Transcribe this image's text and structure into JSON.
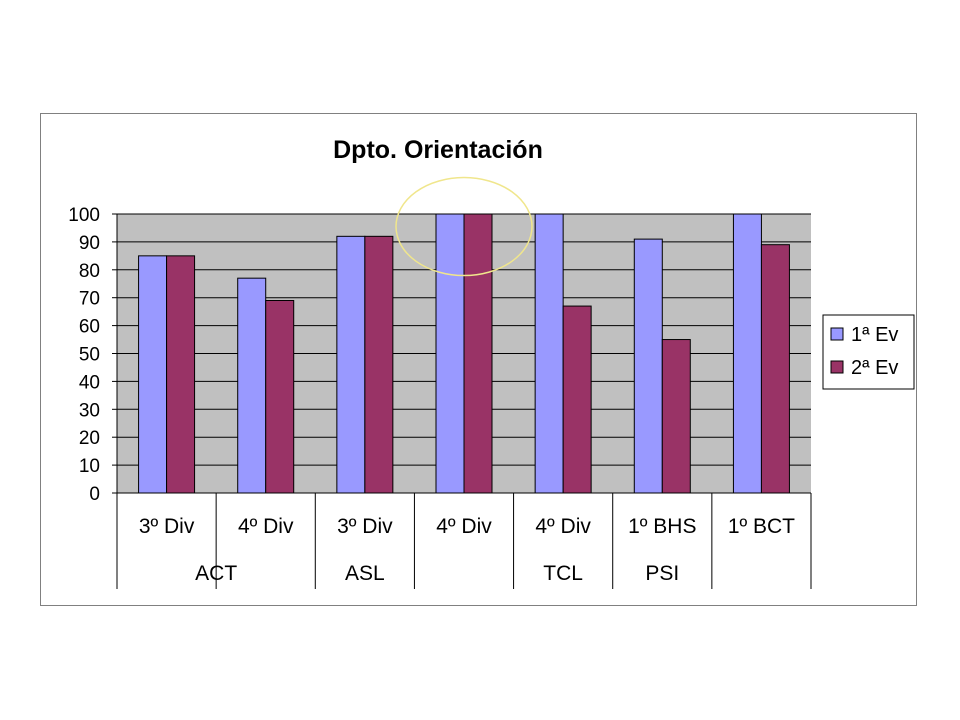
{
  "chart_data": {
    "type": "bar",
    "title": "Dpto. Orientación",
    "xlabel": "",
    "ylabel": "",
    "ylim": [
      0,
      100
    ],
    "y_ticks": [
      0,
      10,
      20,
      30,
      40,
      50,
      60,
      70,
      80,
      90,
      100
    ],
    "categories": [
      "3º Div",
      "4º Div",
      "3º Div",
      "4º Div",
      "4º Div",
      "1º BHS",
      "1º BCT"
    ],
    "groups": [
      {
        "label": "ACT",
        "span": [
          0,
          1
        ]
      },
      {
        "label": "ASL",
        "span": [
          2,
          2
        ]
      },
      {
        "label": "",
        "span": [
          3,
          3
        ]
      },
      {
        "label": "TCL",
        "span": [
          4,
          4
        ]
      },
      {
        "label": "PSI",
        "span": [
          5,
          5
        ]
      },
      {
        "label": "",
        "span": [
          6,
          6
        ]
      }
    ],
    "series": [
      {
        "name": "1ª Ev",
        "color": "#9999ff",
        "values": [
          85,
          77,
          92,
          100,
          100,
          91,
          100
        ]
      },
      {
        "name": "2ª Ev",
        "color": "#993366",
        "values": [
          85,
          69,
          92,
          100,
          67,
          55,
          89
        ]
      }
    ],
    "plot_background": "#c0c0c0",
    "grid": true,
    "legend_position": "right",
    "highlight": {
      "category_index": 3,
      "shape": "ellipse",
      "color": "#f0e68c"
    }
  }
}
